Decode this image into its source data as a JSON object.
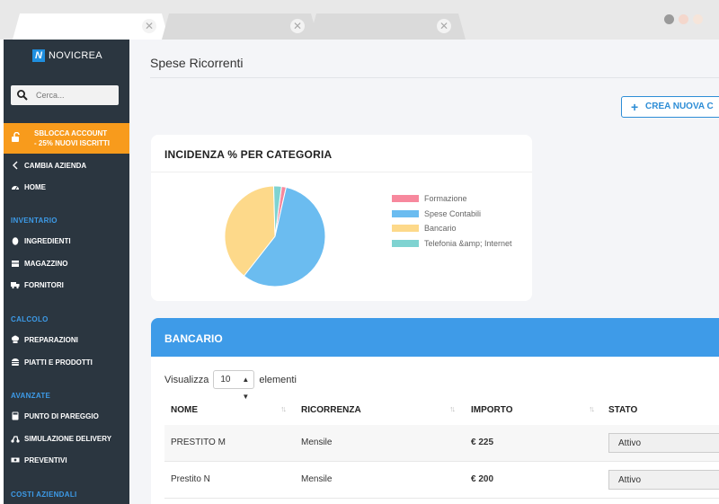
{
  "browser": {
    "tabs": [
      {
        "close": "✕"
      },
      {
        "close": "✕"
      },
      {
        "close": "✕"
      }
    ],
    "window_dots": [
      "#9a9a9a",
      "#f4d7cc",
      "#f6e5da"
    ]
  },
  "sidebar": {
    "brand": "NOVICREA",
    "brand_mark": "N",
    "search_placeholder": "Cerca...",
    "promo": {
      "line1": "SBLOCCA ACCOUNT",
      "line2": "- 25% NUOVI ISCRITTI",
      "icon": "lock-icon"
    },
    "change_company": "CAMBIA AZIENDA",
    "home": "HOME",
    "sections": {
      "inventario": "INVENTARIO",
      "calcolo": "CALCOLO",
      "avanzate": "AVANZATE",
      "costi": "COSTI AZIENDALI"
    },
    "items": {
      "ingredienti": "INGREDIENTI",
      "magazzino": "MAGAZZINO",
      "fornitori": "FORNITORI",
      "preparazioni": "PREPARAZIONI",
      "piatti": "PIATTI E PRODOTTI",
      "pareggio": "PUNTO DI PAREGGIO",
      "delivery": "SIMULAZIONE DELIVERY",
      "preventivi": "PREVENTIVI"
    }
  },
  "main": {
    "title": "Spese Ricorrenti",
    "create_button": "CREA NUOVA C",
    "chart_card_title": "INCIDENZA % PER CATEGORIA",
    "table_title": "BANCARIO",
    "show_label": "Visualizza",
    "show_value": "10",
    "show_suffix": "elementi",
    "columns": [
      "NOME",
      "RICORRENZA",
      "IMPORTO",
      "STATO"
    ],
    "rows": [
      {
        "nome": "PRESTITO M",
        "ricorrenza": "Mensile",
        "importo": "€ 225",
        "stato": "Attivo"
      },
      {
        "nome": "Prestito N",
        "ricorrenza": "Mensile",
        "importo": "€ 200",
        "stato": "Attivo"
      }
    ]
  },
  "chart_data": {
    "type": "pie",
    "title": "INCIDENZA % PER CATEGORIA",
    "categories": [
      "Formazione",
      "Spese Contabili",
      "Bancario",
      "Telefonia &amp; Internet"
    ],
    "values": [
      1.5,
      57,
      39,
      2.5
    ],
    "colors": [
      "#f7889d",
      "#6bbcf0",
      "#fdd98a",
      "#7fd3d1"
    ],
    "legend": "right"
  }
}
